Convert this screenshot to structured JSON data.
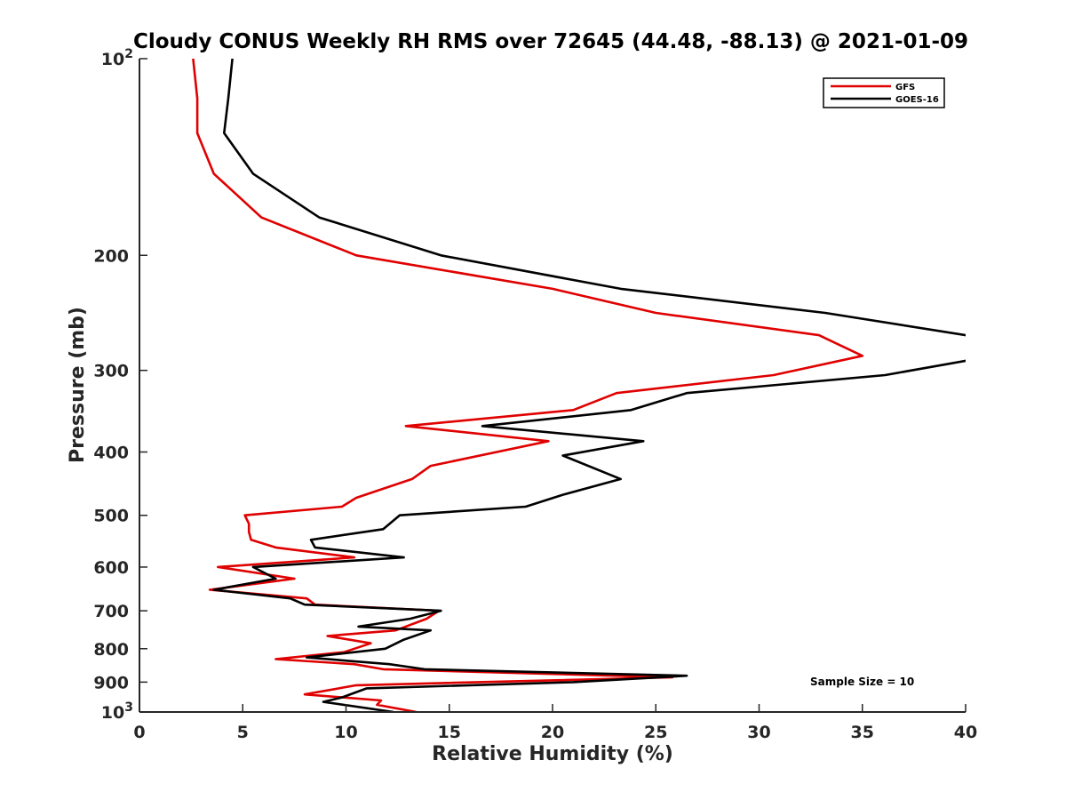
{
  "chart_data": {
    "type": "line",
    "title": "Cloudy CONUS Weekly RH RMS over 72645 (44.48, -88.13) @ 2021-01-09",
    "xlabel": "Relative Humidity (%)",
    "ylabel": "Pressure (mb)",
    "xlim": [
      0,
      40
    ],
    "ylim": [
      100,
      1000
    ],
    "y_scale": "log",
    "y_reversed": true,
    "grid": false,
    "legend_position": "top-right",
    "x_ticks": [
      "0",
      "5",
      "10",
      "15",
      "20",
      "25",
      "30",
      "35",
      "40"
    ],
    "y_ticks": [
      {
        "value": 100,
        "label": "10",
        "sup": "2"
      },
      {
        "value": 200,
        "label": "200",
        "sup": ""
      },
      {
        "value": 300,
        "label": "300",
        "sup": ""
      },
      {
        "value": 400,
        "label": "400",
        "sup": ""
      },
      {
        "value": 500,
        "label": "500",
        "sup": ""
      },
      {
        "value": 600,
        "label": "600",
        "sup": ""
      },
      {
        "value": 700,
        "label": "700",
        "sup": ""
      },
      {
        "value": 800,
        "label": "800",
        "sup": ""
      },
      {
        "value": 900,
        "label": "900",
        "sup": ""
      },
      {
        "value": 1000,
        "label": "10",
        "sup": "3"
      }
    ],
    "annotation": "Sample Size = 10",
    "series": [
      {
        "name": "GFS",
        "color": "#e00000",
        "points": [
          [
            2.6,
            100
          ],
          [
            2.8,
            115
          ],
          [
            2.8,
            130
          ],
          [
            3.6,
            150
          ],
          [
            5.9,
            175
          ],
          [
            10.5,
            200
          ],
          [
            20,
            225
          ],
          [
            25,
            245
          ],
          [
            32.9,
            265
          ],
          [
            35,
            285
          ],
          [
            30.7,
            305
          ],
          [
            23.1,
            325
          ],
          [
            21,
            345
          ],
          [
            12.9,
            365
          ],
          [
            19.8,
            385
          ],
          [
            14.1,
            420
          ],
          [
            13.2,
            440
          ],
          [
            10.5,
            470
          ],
          [
            9.8,
            485
          ],
          [
            5.1,
            500
          ],
          [
            5.3,
            515
          ],
          [
            5.3,
            530
          ],
          [
            5.4,
            545
          ],
          [
            6.6,
            560
          ],
          [
            10.4,
            580
          ],
          [
            3.8,
            600
          ],
          [
            7.5,
            625
          ],
          [
            3.4,
            650
          ],
          [
            8.1,
            670
          ],
          [
            8.5,
            685
          ],
          [
            14.5,
            700
          ],
          [
            13.9,
            720
          ],
          [
            12.4,
            750
          ],
          [
            9.1,
            765
          ],
          [
            11.2,
            785
          ],
          [
            9.9,
            810
          ],
          [
            6.6,
            830
          ],
          [
            10.4,
            845
          ],
          [
            11.8,
            860
          ],
          [
            25.8,
            885
          ],
          [
            10.5,
            910
          ],
          [
            8,
            940
          ],
          [
            11.7,
            960
          ],
          [
            11.5,
            975
          ],
          [
            13.4,
            1000
          ]
        ]
      },
      {
        "name": "GOES-16",
        "color": "#000000",
        "points": [
          [
            4.5,
            100
          ],
          [
            4.3,
            115
          ],
          [
            4.1,
            130
          ],
          [
            5.5,
            150
          ],
          [
            8.7,
            175
          ],
          [
            14.6,
            200
          ],
          [
            23.3,
            225
          ],
          [
            33.2,
            245
          ],
          [
            40,
            265
          ],
          [
            41,
            275
          ],
          [
            40,
            290
          ],
          [
            36.1,
            305
          ],
          [
            26.5,
            325
          ],
          [
            23.8,
            345
          ],
          [
            16.6,
            365
          ],
          [
            24.4,
            385
          ],
          [
            20.5,
            405
          ],
          [
            23.3,
            440
          ],
          [
            20.5,
            465
          ],
          [
            18.7,
            485
          ],
          [
            12.6,
            500
          ],
          [
            11.8,
            525
          ],
          [
            8.3,
            545
          ],
          [
            8.5,
            560
          ],
          [
            12.8,
            580
          ],
          [
            5.5,
            600
          ],
          [
            6.6,
            625
          ],
          [
            3.6,
            650
          ],
          [
            7.3,
            670
          ],
          [
            8,
            685
          ],
          [
            14.6,
            700
          ],
          [
            13.1,
            720
          ],
          [
            10.6,
            740
          ],
          [
            14.1,
            750
          ],
          [
            12.8,
            775
          ],
          [
            11.9,
            800
          ],
          [
            8.1,
            825
          ],
          [
            12.1,
            845
          ],
          [
            13.8,
            860
          ],
          [
            26.5,
            880
          ],
          [
            21,
            900
          ],
          [
            11,
            920
          ],
          [
            9.8,
            950
          ],
          [
            8.9,
            965
          ],
          [
            12.3,
            1000
          ]
        ]
      }
    ]
  }
}
